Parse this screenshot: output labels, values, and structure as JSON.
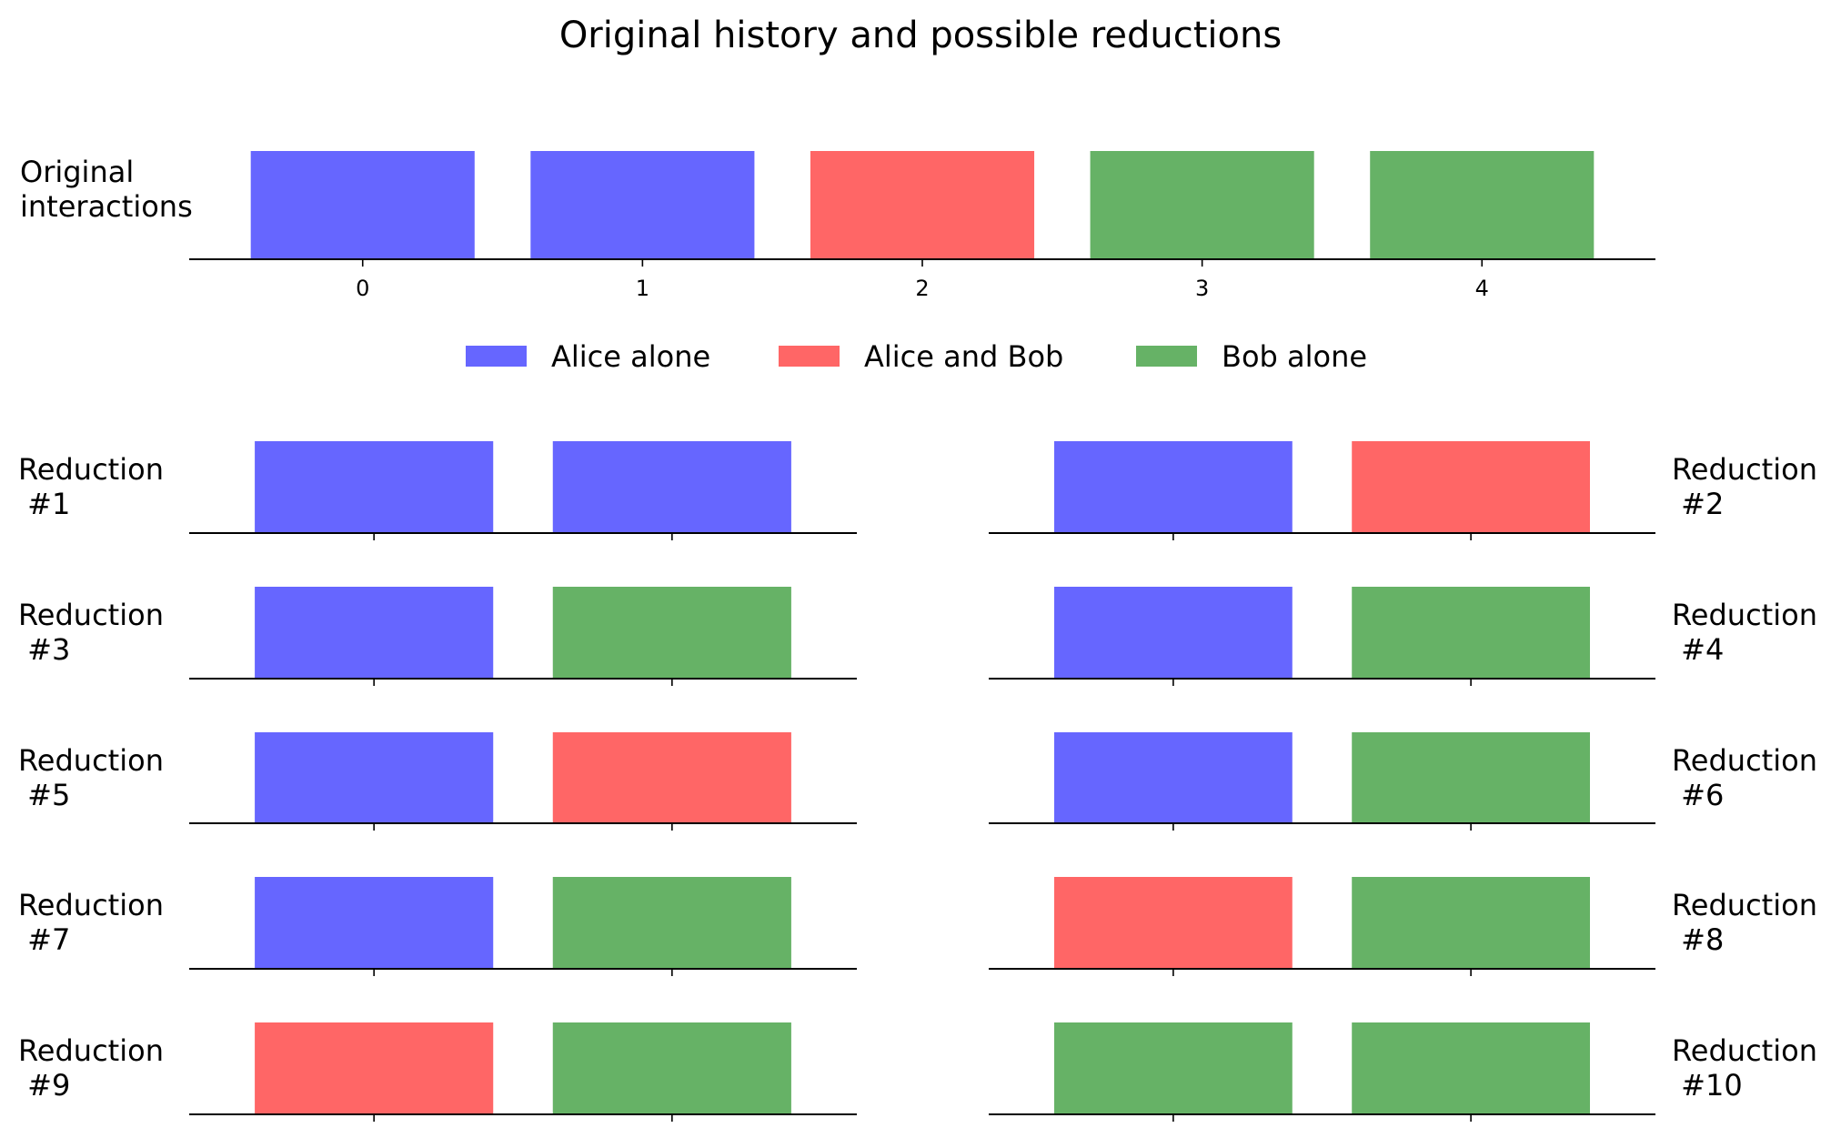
{
  "title": "Original history and possible reductions",
  "colors": {
    "Alice alone": "#6666ff",
    "Alice and Bob": "#ff6666",
    "Bob alone": "#66b266"
  },
  "chart_data": [
    {
      "type": "bar",
      "label": "Original\ninteractions",
      "categories": [
        "0",
        "1",
        "2",
        "3",
        "4"
      ],
      "values": [
        1,
        1,
        1,
        1,
        1
      ],
      "series_per_bar": [
        "Alice alone",
        "Alice alone",
        "Alice and Bob",
        "Bob alone",
        "Bob alone"
      ],
      "show_tick_labels": true
    },
    {
      "type": "bar",
      "label": "Reduction\n #1",
      "values": [
        1,
        1
      ],
      "series_per_bar": [
        "Alice alone",
        "Alice alone"
      ]
    },
    {
      "type": "bar",
      "label": "Reduction\n #2",
      "values": [
        1,
        1
      ],
      "series_per_bar": [
        "Alice alone",
        "Alice and Bob"
      ]
    },
    {
      "type": "bar",
      "label": "Reduction\n #3",
      "values": [
        1,
        1
      ],
      "series_per_bar": [
        "Alice alone",
        "Bob alone"
      ]
    },
    {
      "type": "bar",
      "label": "Reduction\n #4",
      "values": [
        1,
        1
      ],
      "series_per_bar": [
        "Alice alone",
        "Bob alone"
      ]
    },
    {
      "type": "bar",
      "label": "Reduction\n #5",
      "values": [
        1,
        1
      ],
      "series_per_bar": [
        "Alice alone",
        "Alice and Bob"
      ]
    },
    {
      "type": "bar",
      "label": "Reduction\n #6",
      "values": [
        1,
        1
      ],
      "series_per_bar": [
        "Alice alone",
        "Bob alone"
      ]
    },
    {
      "type": "bar",
      "label": "Reduction\n #7",
      "values": [
        1,
        1
      ],
      "series_per_bar": [
        "Alice alone",
        "Bob alone"
      ]
    },
    {
      "type": "bar",
      "label": "Reduction\n #8",
      "values": [
        1,
        1
      ],
      "series_per_bar": [
        "Alice and Bob",
        "Bob alone"
      ]
    },
    {
      "type": "bar",
      "label": "Reduction\n #9",
      "values": [
        1,
        1
      ],
      "series_per_bar": [
        "Alice and Bob",
        "Bob alone"
      ]
    },
    {
      "type": "bar",
      "label": "Reduction\n #10",
      "values": [
        1,
        1
      ],
      "series_per_bar": [
        "Bob alone",
        "Bob alone"
      ]
    }
  ],
  "legend": [
    "Alice alone",
    "Alice and Bob",
    "Bob alone"
  ]
}
